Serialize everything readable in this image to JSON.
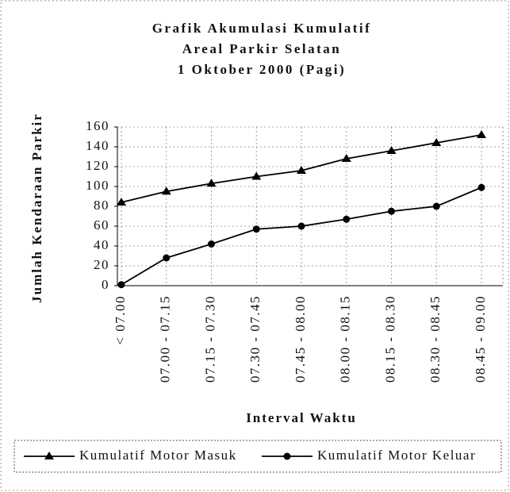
{
  "chart_data": {
    "type": "line",
    "title": [
      "Grafik Akumulasi Kumulatif",
      "Areal Parkir Selatan",
      "1 Oktober 2000 (Pagi)"
    ],
    "xlabel": "Interval Waktu",
    "ylabel": "Jumlah Kendaraan Parkir",
    "categories": [
      "< 07.00",
      "07.00 - 07.15",
      "07.15 - 07.30",
      "07.30 - 07.45",
      "07.45 - 08.00",
      "08.00 - 08.15",
      "08.15 - 08.30",
      "08.30 - 08.45",
      "08.45 - 09.00"
    ],
    "series": [
      {
        "name": "Kumulatif Motor Masuk",
        "color": "#000000",
        "marker": "triangle",
        "values": [
          84,
          95,
          103,
          110,
          116,
          128,
          136,
          144,
          152
        ]
      },
      {
        "name": "Kumulatif Motor Keluar",
        "color": "#000000",
        "marker": "circle",
        "values": [
          1,
          28,
          42,
          57,
          60,
          67,
          75,
          80,
          99
        ]
      }
    ],
    "ylim": [
      0,
      160
    ],
    "yticks": [
      0,
      20,
      40,
      60,
      80,
      100,
      120,
      140,
      160
    ],
    "grid": true,
    "legend": "bottom"
  }
}
